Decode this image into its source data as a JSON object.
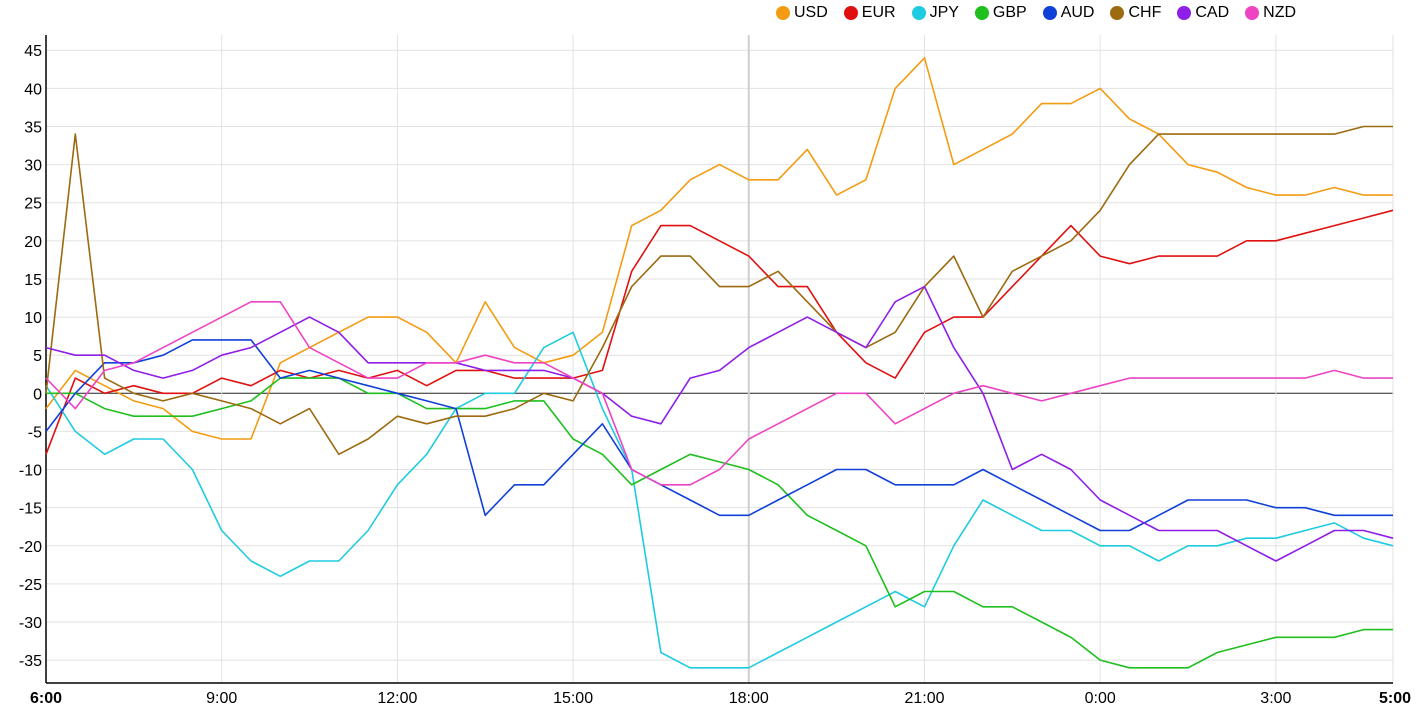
{
  "chart_data": {
    "type": "line",
    "title": "",
    "xlabel": "",
    "ylabel": "",
    "ylim": [
      -38,
      47
    ],
    "grid": true,
    "legend_position": "top-right",
    "y_ticks": [
      45,
      40,
      35,
      30,
      25,
      20,
      15,
      10,
      5,
      0,
      -5,
      -10,
      -15,
      -20,
      -25,
      -30,
      -35
    ],
    "x_tick_labels": [
      "6:00",
      "9:00",
      "12:00",
      "15:00",
      "18:00",
      "21:00",
      "0:00",
      "3:00",
      "5:00"
    ],
    "x_tick_hours": [
      0,
      3,
      6,
      9,
      12,
      15,
      18,
      21,
      23
    ],
    "x_range_hours": [
      0,
      23
    ],
    "series": [
      {
        "name": "USD",
        "color": "#f39c12",
        "x": [
          0,
          0.5,
          1,
          1.5,
          2,
          2.5,
          3,
          3.5,
          4,
          4.5,
          5,
          5.5,
          6,
          6.5,
          7,
          7.5,
          8,
          8.5,
          9,
          9.5,
          10,
          10.5,
          11,
          11.5,
          12,
          12.5,
          13,
          13.5,
          14,
          14.5,
          15,
          15.5,
          16,
          16.5,
          17,
          17.5,
          18,
          18.5,
          19,
          19.5,
          20,
          20.5,
          21,
          21.5,
          22,
          22.5,
          23
        ],
        "y": [
          -2,
          3,
          1,
          -1,
          -2,
          -5,
          -6,
          -6,
          4,
          6,
          8,
          10,
          10,
          8,
          4,
          12,
          6,
          4,
          5,
          8,
          22,
          24,
          28,
          30,
          28,
          28,
          32,
          26,
          28,
          40,
          44,
          30,
          32,
          34,
          38,
          38,
          40,
          36,
          34,
          30,
          29,
          27,
          26,
          26,
          27,
          26,
          26
        ]
      },
      {
        "name": "EUR",
        "color": "#e01010",
        "x": [
          0,
          0.5,
          1,
          1.5,
          2,
          2.5,
          3,
          3.5,
          4,
          4.5,
          5,
          5.5,
          6,
          6.5,
          7,
          7.5,
          8,
          8.5,
          9,
          9.5,
          10,
          10.5,
          11,
          11.5,
          12,
          12.5,
          13,
          13.5,
          14,
          14.5,
          15,
          15.5,
          16,
          16.5,
          17,
          17.5,
          18,
          18.5,
          19,
          19.5,
          20,
          20.5,
          21,
          21.5,
          22,
          22.5,
          23
        ],
        "y": [
          -8,
          2,
          0,
          1,
          0,
          0,
          2,
          1,
          3,
          2,
          3,
          2,
          3,
          1,
          3,
          3,
          2,
          2,
          2,
          3,
          16,
          22,
          22,
          20,
          18,
          14,
          14,
          8,
          4,
          2,
          8,
          10,
          10,
          14,
          18,
          22,
          18,
          17,
          18,
          18,
          18,
          20,
          20,
          21,
          22,
          23,
          24
        ]
      },
      {
        "name": "JPY",
        "color": "#1ecbe1",
        "x": [
          0,
          0.5,
          1,
          1.5,
          2,
          2.5,
          3,
          3.5,
          4,
          4.5,
          5,
          5.5,
          6,
          6.5,
          7,
          7.5,
          8,
          8.5,
          9,
          9.5,
          10,
          10.5,
          11,
          11.5,
          12,
          12.5,
          13,
          13.5,
          14,
          14.5,
          15,
          15.5,
          16,
          16.5,
          17,
          17.5,
          18,
          18.5,
          19,
          19.5,
          20,
          20.5,
          21,
          21.5,
          22,
          22.5,
          23
        ],
        "y": [
          1,
          -5,
          -8,
          -6,
          -6,
          -10,
          -18,
          -22,
          -24,
          -22,
          -22,
          -18,
          -12,
          -8,
          -2,
          0,
          0,
          6,
          8,
          -2,
          -10,
          -34,
          -36,
          -36,
          -36,
          -34,
          -32,
          -30,
          -28,
          -26,
          -28,
          -20,
          -14,
          -16,
          -18,
          -18,
          -20,
          -20,
          -22,
          -20,
          -20,
          -19,
          -19,
          -18,
          -17,
          -19,
          -20
        ]
      },
      {
        "name": "GBP",
        "color": "#1ebf1e",
        "x": [
          0,
          0.5,
          1,
          1.5,
          2,
          2.5,
          3,
          3.5,
          4,
          4.5,
          5,
          5.5,
          6,
          6.5,
          7,
          7.5,
          8,
          8.5,
          9,
          9.5,
          10,
          10.5,
          11,
          11.5,
          12,
          12.5,
          13,
          13.5,
          14,
          14.5,
          15,
          15.5,
          16,
          16.5,
          17,
          17.5,
          18,
          18.5,
          19,
          19.5,
          20,
          20.5,
          21,
          21.5,
          22,
          22.5,
          23
        ],
        "y": [
          0,
          0,
          -2,
          -3,
          -3,
          -3,
          -2,
          -1,
          2,
          2,
          2,
          0,
          0,
          -2,
          -2,
          -2,
          -1,
          -1,
          -6,
          -8,
          -12,
          -10,
          -8,
          -9,
          -10,
          -12,
          -16,
          -18,
          -20,
          -28,
          -26,
          -26,
          -28,
          -28,
          -30,
          -32,
          -35,
          -36,
          -36,
          -36,
          -34,
          -33,
          -32,
          -32,
          -32,
          -31,
          -31
        ]
      },
      {
        "name": "AUD",
        "color": "#1040d8",
        "x": [
          0,
          0.5,
          1,
          1.5,
          2,
          2.5,
          3,
          3.5,
          4,
          4.5,
          5,
          5.5,
          6,
          6.5,
          7,
          7.5,
          8,
          8.5,
          9,
          9.5,
          10,
          10.5,
          11,
          11.5,
          12,
          12.5,
          13,
          13.5,
          14,
          14.5,
          15,
          15.5,
          16,
          16.5,
          17,
          17.5,
          18,
          18.5,
          19,
          19.5,
          20,
          20.5,
          21,
          21.5,
          22,
          22.5,
          23
        ],
        "y": [
          -5,
          0,
          4,
          4,
          5,
          7,
          7,
          7,
          2,
          3,
          2,
          1,
          0,
          -1,
          -2,
          -16,
          -12,
          -12,
          -8,
          -4,
          -10,
          -12,
          -14,
          -16,
          -16,
          -14,
          -12,
          -10,
          -10,
          -12,
          -12,
          -12,
          -10,
          -12,
          -14,
          -16,
          -18,
          -18,
          -16,
          -14,
          -14,
          -14,
          -15,
          -15,
          -16,
          -16,
          -16
        ]
      },
      {
        "name": "CHF",
        "color": "#9c6a10",
        "x": [
          0,
          0.5,
          1,
          1.5,
          2,
          2.5,
          3,
          3.5,
          4,
          4.5,
          5,
          5.5,
          6,
          6.5,
          7,
          7.5,
          8,
          8.5,
          9,
          9.5,
          10,
          10.5,
          11,
          11.5,
          12,
          12.5,
          13,
          13.5,
          14,
          14.5,
          15,
          15.5,
          16,
          16.5,
          17,
          17.5,
          18,
          18.5,
          19,
          19.5,
          20,
          20.5,
          21,
          21.5,
          22,
          22.5,
          23
        ],
        "y": [
          0,
          34,
          2,
          0,
          -1,
          0,
          -1,
          -2,
          -4,
          -2,
          -8,
          -6,
          -3,
          -4,
          -3,
          -3,
          -2,
          0,
          -1,
          6,
          14,
          18,
          18,
          14,
          14,
          16,
          12,
          8,
          6,
          8,
          14,
          18,
          10,
          16,
          18,
          20,
          24,
          30,
          34,
          34,
          34,
          34,
          34,
          34,
          34,
          35,
          35
        ]
      },
      {
        "name": "CAD",
        "color": "#8e1ee8",
        "x": [
          0,
          0.5,
          1,
          1.5,
          2,
          2.5,
          3,
          3.5,
          4,
          4.5,
          5,
          5.5,
          6,
          6.5,
          7,
          7.5,
          8,
          8.5,
          9,
          9.5,
          10,
          10.5,
          11,
          11.5,
          12,
          12.5,
          13,
          13.5,
          14,
          14.5,
          15,
          15.5,
          16,
          16.5,
          17,
          17.5,
          18,
          18.5,
          19,
          19.5,
          20,
          20.5,
          21,
          21.5,
          22,
          22.5,
          23
        ],
        "y": [
          6,
          5,
          5,
          3,
          2,
          3,
          5,
          6,
          8,
          10,
          8,
          4,
          4,
          4,
          4,
          3,
          3,
          3,
          2,
          0,
          -3,
          -4,
          2,
          3,
          6,
          8,
          10,
          8,
          6,
          12,
          14,
          6,
          0,
          -10,
          -8,
          -10,
          -14,
          -16,
          -18,
          -18,
          -18,
          -20,
          -22,
          -20,
          -18,
          -18,
          -19
        ]
      },
      {
        "name": "NZD",
        "color": "#ee44c4",
        "x": [
          0,
          0.5,
          1,
          1.5,
          2,
          2.5,
          3,
          3.5,
          4,
          4.5,
          5,
          5.5,
          6,
          6.5,
          7,
          7.5,
          8,
          8.5,
          9,
          9.5,
          10,
          10.5,
          11,
          11.5,
          12,
          12.5,
          13,
          13.5,
          14,
          14.5,
          15,
          15.5,
          16,
          16.5,
          17,
          17.5,
          18,
          18.5,
          19,
          19.5,
          20,
          20.5,
          21,
          21.5,
          22,
          22.5,
          23
        ],
        "y": [
          2,
          -2,
          3,
          4,
          6,
          8,
          10,
          12,
          12,
          6,
          4,
          2,
          2,
          4,
          4,
          5,
          4,
          4,
          2,
          0,
          -10,
          -12,
          -12,
          -10,
          -6,
          -4,
          -2,
          0,
          0,
          -4,
          -2,
          0,
          1,
          0,
          -1,
          0,
          1,
          2,
          2,
          2,
          2,
          2,
          2,
          2,
          3,
          2,
          2
        ]
      }
    ]
  }
}
